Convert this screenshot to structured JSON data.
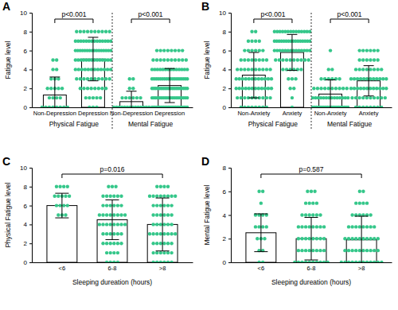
{
  "chart_data": [
    {
      "type": "bar",
      "title": "A",
      "y_label": "Fatigue level",
      "categories": [
        "Non-Depression",
        "Depression",
        "Non-Depression",
        "Depression"
      ],
      "x_groups": [
        "Physical Fatigue",
        "Mental Fatigue"
      ],
      "values": [
        1.3,
        5.1,
        0.6,
        2.3
      ],
      "errors": [
        1.9,
        2.3,
        1.1,
        1.8
      ],
      "point_levels": [
        0,
        1,
        2,
        3,
        4,
        5,
        6,
        7,
        8
      ],
      "point_counts": [
        [
          8,
          4,
          5,
          3,
          2,
          2,
          0,
          0,
          0
        ],
        [
          3,
          5,
          8,
          10,
          12,
          14,
          16,
          14,
          10
        ],
        [
          14,
          6,
          2,
          2,
          0,
          0,
          0,
          0,
          0
        ],
        [
          25,
          20,
          20,
          18,
          14,
          10,
          8,
          0,
          0
        ]
      ],
      "annotations": [
        {
          "text": "p<0.001",
          "from": 0,
          "to": 1
        },
        {
          "text": "p<0.001",
          "from": 2,
          "to": 3
        }
      ],
      "color": "#35c78a",
      "ylim": [
        0,
        10
      ],
      "yticks": [
        0,
        2,
        4,
        6,
        8,
        10
      ]
    },
    {
      "type": "bar",
      "title": "B",
      "y_label": "Fatigue level",
      "categories": [
        "Non-Anxiety",
        "Anxiety",
        "Non-Anxiety",
        "Anxiety"
      ],
      "x_groups": [
        "Physical Fatigue",
        "Mental Fatigue"
      ],
      "values": [
        3.4,
        5.8,
        1.4,
        2.8
      ],
      "errors": [
        2.4,
        1.9,
        1.5,
        1.6
      ],
      "point_levels": [
        0,
        1,
        2,
        3,
        4,
        5,
        6,
        7,
        8
      ],
      "point_counts": [
        [
          8,
          10,
          12,
          12,
          10,
          8,
          6,
          4,
          2
        ],
        [
          1,
          1,
          2,
          3,
          6,
          10,
          14,
          16,
          14
        ],
        [
          20,
          14,
          10,
          6,
          2,
          0,
          1,
          0,
          0
        ],
        [
          8,
          10,
          12,
          12,
          8,
          6,
          6,
          0,
          0
        ]
      ],
      "annotations": [
        {
          "text": "p<0.001",
          "from": 0,
          "to": 1
        },
        {
          "text": "p<0.001",
          "from": 2,
          "to": 3
        }
      ],
      "color": "#35c78a",
      "ylim": [
        0,
        10
      ],
      "yticks": [
        0,
        2,
        4,
        6,
        8,
        10
      ]
    },
    {
      "type": "bar",
      "title": "C",
      "y_label": "Physical Fatigue level",
      "x_label": "Sleeping dureation (hours)",
      "categories": [
        "<6",
        "6-8",
        ">8"
      ],
      "values": [
        6.0,
        4.5,
        4.0
      ],
      "errors": [
        1.3,
        2.1,
        2.8
      ],
      "point_levels": [
        0,
        1,
        2,
        3,
        4,
        5,
        6,
        7,
        8
      ],
      "point_counts": [
        [
          0,
          0,
          0,
          0,
          0,
          3,
          4,
          5,
          4
        ],
        [
          4,
          4,
          6,
          6,
          8,
          8,
          6,
          6,
          3
        ],
        [
          6,
          6,
          6,
          8,
          6,
          6,
          6,
          8,
          4
        ]
      ],
      "annotations": [
        {
          "text": "p=0.016",
          "from": 0,
          "to": 2
        }
      ],
      "color": "#35c78a",
      "ylim": [
        0,
        10
      ],
      "yticks": [
        0,
        2,
        4,
        6,
        8,
        10
      ]
    },
    {
      "type": "bar",
      "title": "D",
      "y_label": "Mental Fatigue level",
      "x_label": "Sleeping dureation (hours)",
      "categories": [
        "<6",
        "6-8",
        ">8"
      ],
      "values": [
        2.5,
        2.0,
        1.9
      ],
      "errors": [
        1.6,
        1.8,
        2.0
      ],
      "point_levels": [
        0,
        1,
        2,
        3,
        4,
        5,
        6
      ],
      "point_counts": [
        [
          2,
          2,
          3,
          4,
          4,
          1,
          2
        ],
        [
          10,
          8,
          8,
          8,
          6,
          4,
          3
        ],
        [
          12,
          10,
          10,
          8,
          6,
          4,
          2
        ]
      ],
      "annotations": [
        {
          "text": "p=0.587",
          "from": 0,
          "to": 2
        }
      ],
      "color": "#35c78a",
      "ylim": [
        0,
        8
      ],
      "yticks": [
        0,
        2,
        4,
        6,
        8
      ]
    }
  ]
}
